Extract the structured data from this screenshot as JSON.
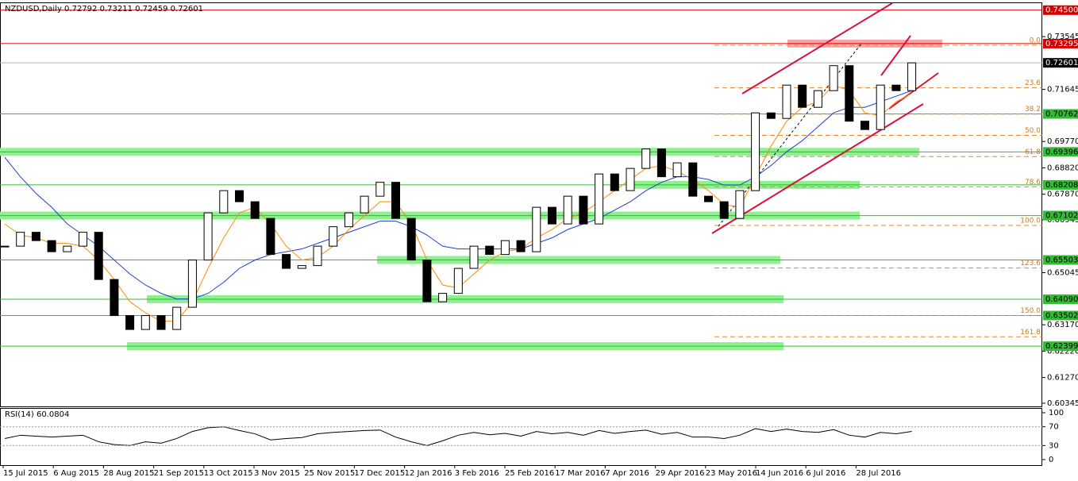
{
  "chart_data": {
    "type": "candlestick",
    "title": "NZDUSD,Daily  0.72792 0.73211 0.72459 0.72601",
    "ylim": [
      0.6023,
      0.7475
    ],
    "yticks": [
      0.73545,
      0.71645,
      {
        "value": 0.6977,
        "label": "0.69770"
      },
      {
        "value": 0.6882,
        "label": "0.68820"
      },
      {
        "value": 0.6787,
        "label": "0.67870"
      },
      0.66945,
      0.65045,
      {
        "value": 0.6317,
        "label": "0.63170"
      },
      {
        "value": 0.6222,
        "label": "0.62220"
      },
      {
        "value": 0.6127,
        "label": "0.61270"
      },
      0.60345
    ],
    "x_labels": [
      "15 Jul 2015",
      "6 Aug 2015",
      "28 Aug 2015",
      "21 Sep 2015",
      "13 Oct 2015",
      "3 Nov 2015",
      "25 Nov 2015",
      "17 Dec 2015",
      "12 Jan 2016",
      "3 Feb 2016",
      "25 Feb 2016",
      "17 Mar 2016",
      "7 Apr 2016",
      "29 Apr 2016",
      "23 May 2016",
      "14 Jun 2016",
      "6 Jul 2016",
      "28 Jul 2016"
    ],
    "series": [
      {
        "color": "#000000",
        "values": [
          0.66,
          0.665,
          0.662,
          0.658,
          0.66,
          0.665,
          0.648,
          0.635,
          0.63,
          0.635,
          0.63,
          0.638,
          0.655,
          0.672,
          0.68,
          0.676,
          0.67,
          0.657,
          0.652,
          0.653,
          0.66,
          0.667,
          0.672,
          0.678,
          0.683,
          0.67,
          0.655,
          0.64,
          0.643,
          0.652,
          0.66,
          0.657,
          0.662,
          0.658,
          0.674,
          0.668,
          0.678,
          0.668,
          0.686,
          0.68,
          0.688,
          0.695,
          0.685,
          0.69,
          0.678,
          0.676,
          0.67,
          0.68,
          0.708,
          0.706,
          0.718,
          0.71,
          0.716,
          0.725,
          0.705,
          0.702,
          0.718,
          0.716,
          0.72601
        ]
      },
      {
        "color": "#1f3fd6",
        "values": [
          0.692,
          0.685,
          0.679,
          0.674,
          0.668,
          0.664,
          0.66,
          0.655,
          0.65,
          0.646,
          0.643,
          0.641,
          0.641,
          0.643,
          0.647,
          0.652,
          0.655,
          0.657,
          0.658,
          0.659,
          0.661,
          0.663,
          0.665,
          0.667,
          0.669,
          0.669,
          0.667,
          0.664,
          0.66,
          0.659,
          0.659,
          0.659,
          0.659,
          0.659,
          0.661,
          0.663,
          0.666,
          0.668,
          0.67,
          0.673,
          0.676,
          0.68,
          0.683,
          0.685,
          0.685,
          0.684,
          0.682,
          0.682,
          0.685,
          0.689,
          0.694,
          0.698,
          0.703,
          0.708,
          0.71,
          0.71,
          0.712,
          0.714,
          0.716
        ]
      },
      {
        "color": "#ff8c00",
        "values": [
          0.668,
          0.664,
          0.663,
          0.661,
          0.661,
          0.66,
          0.655,
          0.648,
          0.64,
          0.636,
          0.633,
          0.633,
          0.64,
          0.652,
          0.663,
          0.672,
          0.674,
          0.668,
          0.66,
          0.655,
          0.656,
          0.66,
          0.666,
          0.671,
          0.676,
          0.676,
          0.668,
          0.655,
          0.646,
          0.645,
          0.65,
          0.655,
          0.658,
          0.659,
          0.663,
          0.666,
          0.67,
          0.672,
          0.676,
          0.68,
          0.684,
          0.688,
          0.689,
          0.687,
          0.684,
          0.68,
          0.675,
          0.674,
          0.685,
          0.696,
          0.705,
          0.71,
          0.712,
          0.718,
          0.716,
          0.708,
          0.707,
          0.712,
          0.715
        ]
      }
    ],
    "levels": [
      {
        "value": 0.745,
        "label": "0.74500",
        "color": "#d00000"
      },
      {
        "value": 0.73295,
        "label": "0.73295",
        "color": "#d00000"
      },
      {
        "value": 0.72601,
        "label": "0.72601",
        "color": "#000000"
      },
      {
        "value": 0.70762,
        "label": "0.70762",
        "color": "#33bb33"
      },
      {
        "value": 0.69396,
        "label": "0.69396",
        "color": "#33bb33"
      },
      {
        "value": 0.68208,
        "label": "0.68208",
        "color": "#33bb33"
      },
      {
        "value": 0.67102,
        "label": "0.67102",
        "color": "#33bb33"
      },
      {
        "value": 0.65503,
        "label": "0.65503",
        "color": "#33bb33"
      },
      {
        "value": 0.6409,
        "label": "0.64090",
        "color": "#33bb33"
      },
      {
        "value": 0.63502,
        "label": "0.63502",
        "color": "#33bb33"
      },
      {
        "value": 0.62399,
        "label": "0.62399",
        "color": "#33bb33"
      }
    ],
    "fib_levels": [
      {
        "value": 0,
        "label": "0.0"
      },
      23.6,
      38.2,
      {
        "value": 50,
        "label": "50.0"
      },
      61.8,
      78.6,
      {
        "value": 100,
        "label": "100.0"
      },
      123.6,
      {
        "value": 150,
        "label": "150.0"
      },
      161.8
    ],
    "rsi": {
      "label": "RSI(14) 60.0804",
      "ylim": [
        0,
        100
      ],
      "yticks": [
        100,
        70,
        30,
        0
      ],
      "color": "#000000",
      "values": [
        45,
        52,
        50,
        48,
        50,
        52,
        38,
        32,
        30,
        38,
        35,
        45,
        60,
        68,
        70,
        62,
        55,
        42,
        45,
        47,
        55,
        58,
        60,
        62,
        63,
        48,
        38,
        30,
        40,
        52,
        58,
        53,
        56,
        50,
        60,
        55,
        58,
        52,
        62,
        56,
        60,
        63,
        54,
        58,
        48,
        48,
        45,
        52,
        66,
        60,
        65,
        60,
        58,
        64,
        52,
        48,
        58,
        55,
        60.08
      ]
    }
  }
}
